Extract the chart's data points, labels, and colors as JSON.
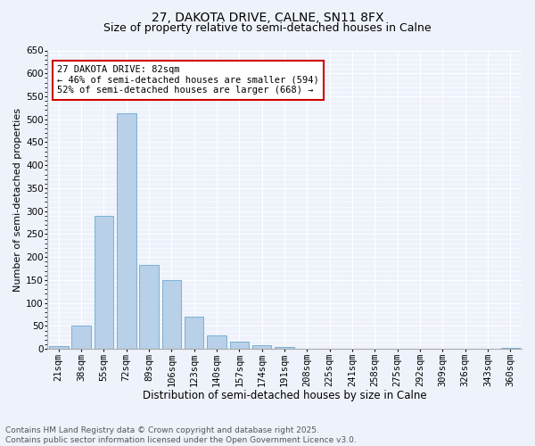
{
  "title1": "27, DAKOTA DRIVE, CALNE, SN11 8FX",
  "title2": "Size of property relative to semi-detached houses in Calne",
  "xlabel": "Distribution of semi-detached houses by size in Calne",
  "ylabel": "Number of semi-detached properties",
  "categories": [
    "21sqm",
    "38sqm",
    "55sqm",
    "72sqm",
    "89sqm",
    "106sqm",
    "123sqm",
    "140sqm",
    "157sqm",
    "174sqm",
    "191sqm",
    "208sqm",
    "225sqm",
    "241sqm",
    "258sqm",
    "275sqm",
    "292sqm",
    "309sqm",
    "326sqm",
    "343sqm",
    "360sqm"
  ],
  "values": [
    7,
    50,
    290,
    513,
    182,
    150,
    70,
    30,
    15,
    8,
    4,
    1,
    1,
    0,
    1,
    0,
    0,
    0,
    0,
    0,
    3
  ],
  "bar_color": "#b8d0e8",
  "bar_edge_color": "#6aaad4",
  "background_color": "#eef2fb",
  "grid_color": "#ffffff",
  "annotation_text": "27 DAKOTA DRIVE: 82sqm\n← 46% of semi-detached houses are smaller (594)\n52% of semi-detached houses are larger (668) →",
  "annotation_box_color": "#ffffff",
  "annotation_box_edge": "#cc0000",
  "footer_text": "Contains HM Land Registry data © Crown copyright and database right 2025.\nContains public sector information licensed under the Open Government Licence v3.0.",
  "ylim": [
    0,
    650
  ],
  "title1_fontsize": 10,
  "title2_fontsize": 9,
  "xlabel_fontsize": 8.5,
  "ylabel_fontsize": 8,
  "tick_fontsize": 7.5,
  "annotation_fontsize": 7.5,
  "footer_fontsize": 6.5
}
